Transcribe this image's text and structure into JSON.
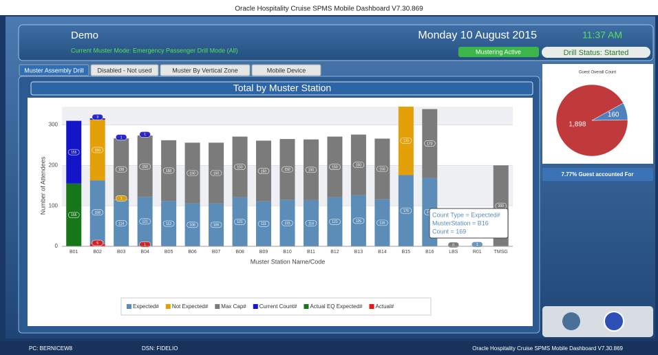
{
  "window_title": "Oracle Hospitality Cruise SPMS Mobile Dashboard V7.30.869",
  "header": {
    "name": "Demo",
    "mode": "Current Muster Mode: Emergency Passenger Drill Mode (All)",
    "date": "Monday 10 August 2015",
    "time": "11:37 AM",
    "mustering": "Mustering Active",
    "drill_status": "Drill Status: Started"
  },
  "tabs": [
    "Muster Assembly Drill",
    "Disabled - Not used",
    "Muster By Vertical Zone",
    "Mobile Device"
  ],
  "chart_data": {
    "type": "bar",
    "title": "Total by Muster Station",
    "x_label": "Muster Station Name/Code",
    "y_label": "Number of Attendees",
    "categories": [
      "B01",
      "B02",
      "B03",
      "B04",
      "B05",
      "B06",
      "B07",
      "B08",
      "B09",
      "B10",
      "B11",
      "B12",
      "B13",
      "B14",
      "B15",
      "B16",
      "LBS",
      "R01",
      "TMSG"
    ],
    "series": [
      {
        "name": "Expected#",
        "color": "#5b8db8",
        "values": [
          null,
          158,
          114,
          121,
          112,
          106,
          106,
          121,
          111,
          115,
          114,
          121,
          126,
          116,
          176,
          169,
          0,
          1,
          null
        ]
      },
      {
        "name": "Not Expected#",
        "color": "#e3a008",
        "values": [
          null,
          150,
          1,
          null,
          null,
          null,
          null,
          null,
          null,
          null,
          null,
          null,
          null,
          null,
          170,
          null,
          null,
          null,
          null
        ]
      },
      {
        "name": "Max Cap#",
        "color": "#7b7b7b",
        "values": [
          null,
          null,
          150,
          150,
          150,
          150,
          150,
          150,
          150,
          150,
          150,
          150,
          150,
          150,
          null,
          170,
          0,
          null,
          200
        ]
      },
      {
        "name": "Current Count#",
        "color": "#1414c8",
        "values": [
          155,
          3,
          1,
          1,
          null,
          null,
          null,
          null,
          null,
          null,
          null,
          null,
          null,
          null,
          null,
          null,
          null,
          null,
          null
        ]
      },
      {
        "name": "Actual EQ Expected#",
        "color": "#17761a",
        "values": [
          155,
          null,
          null,
          null,
          null,
          null,
          null,
          null,
          null,
          null,
          null,
          null,
          null,
          null,
          null,
          null,
          null,
          null,
          null
        ]
      },
      {
        "name": "Actual#",
        "color": "#e01818",
        "values": [
          null,
          5,
          null,
          1,
          null,
          null,
          null,
          null,
          null,
          null,
          null,
          null,
          null,
          null,
          null,
          null,
          null,
          null,
          null
        ]
      }
    ],
    "ylim": [
      0,
      345
    ],
    "yticks": [
      0,
      100,
      200,
      300
    ],
    "grid": true,
    "legend": "bottom"
  },
  "tooltip": [
    "Count Type = Expected#",
    "MusterStation = B16",
    "Count = 169"
  ],
  "pie": {
    "type": "pie",
    "title": "Guest Overall Count",
    "values": [
      1898,
      160
    ],
    "value_labels": [
      "1,898",
      "160"
    ],
    "colors": [
      "#c0393b",
      "#4f81bd"
    ]
  },
  "accounted": "7.77% Guest accounted For",
  "status": {
    "pc": "PC: BERNICEW8",
    "dsn": "DSN: FIDELIO",
    "version": "Oracle Hospitality Cruise SPMS Mobile Dashboard V7.30.869"
  }
}
